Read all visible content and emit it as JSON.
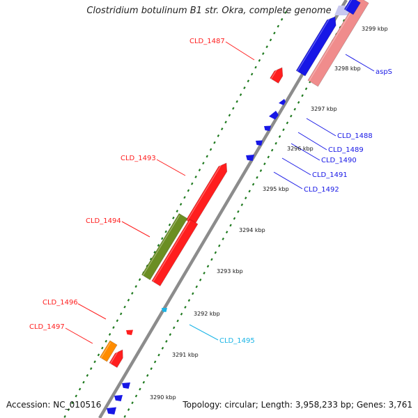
{
  "title": "Clostridium botulinum B1 str. Okra, complete genome",
  "footer": {
    "accession": "Accession: NC_010516",
    "topology": "Topology: circular; Length: 3,958,233 bp; Genes: 3,761"
  },
  "colors": {
    "backbone": "#8c8c8c",
    "tick_dots": "#1f7a1f",
    "red": "#ff1e1e",
    "blue": "#1717e6",
    "pink": "#f08c8c",
    "olive": "#6b8e23",
    "orange": "#ff8c00",
    "cyan": "#19b4e6",
    "lavender": "#c8c8f0"
  },
  "ticks": [
    {
      "label": "3290 kbp"
    },
    {
      "label": "3291 kbp"
    },
    {
      "label": "3292 kbp"
    },
    {
      "label": "3293 kbp"
    },
    {
      "label": "3294 kbp"
    },
    {
      "label": "3295 kbp"
    },
    {
      "label": "3296 kbp"
    },
    {
      "label": "3297 kbp"
    },
    {
      "label": "3298 kbp"
    },
    {
      "label": "3299 kbp"
    }
  ],
  "gene_labels": [
    {
      "name": "CLD_1487",
      "color": "red"
    },
    {
      "name": "CLD_1493",
      "color": "red"
    },
    {
      "name": "CLD_1494",
      "color": "red"
    },
    {
      "name": "CLD_1496",
      "color": "red"
    },
    {
      "name": "CLD_1497",
      "color": "red"
    },
    {
      "name": "aspS",
      "color": "blue"
    },
    {
      "name": "CLD_1488",
      "color": "blue"
    },
    {
      "name": "CLD_1489",
      "color": "blue"
    },
    {
      "name": "CLD_1490",
      "color": "blue"
    },
    {
      "name": "CLD_1491",
      "color": "blue"
    },
    {
      "name": "CLD_1492",
      "color": "blue"
    },
    {
      "name": "CLD_1495",
      "color": "cyan"
    }
  ]
}
